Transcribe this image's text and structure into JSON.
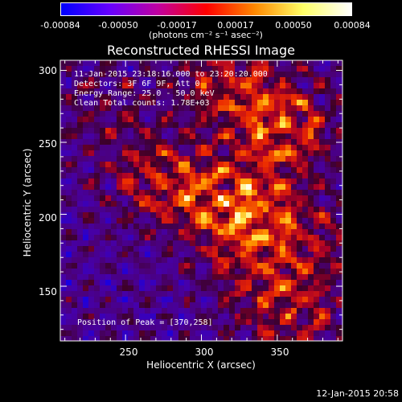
{
  "colorbar": {
    "ticks": [
      "-0.00084",
      "-0.00050",
      "-0.00017",
      "0.00017",
      "0.00050",
      "0.00084"
    ],
    "unit": "(photons cm⁻² s⁻¹ asec⁻²)",
    "colors": [
      "#0000ff",
      "#6600ff",
      "#c000a0",
      "#ff0000",
      "#ff8800",
      "#ffff66",
      "#ffffff"
    ]
  },
  "chart_data": {
    "type": "heatmap",
    "title": "Reconstructed RHESSI Image",
    "xlabel": "Heliocentric X (arcsec)",
    "ylabel": "Heliocentric Y (arcsec)",
    "xlim": [
      207,
      393
    ],
    "ylim": [
      112,
      307
    ],
    "x_ticks": [
      "250",
      "300",
      "350"
    ],
    "y_ticks": [
      "150",
      "200",
      "250",
      "300"
    ],
    "info_lines": [
      "11-Jan-2015 23:18:16.000 to 23:20:20.000",
      "Detectors: 3F 6F 9F, Att 0",
      "Energy Range: 25.0 - 50.0 keV",
      "Clean     Total counts: 1.78E+03"
    ],
    "peak_label": "Position of Peak = [370,258]",
    "peak": [
      370,
      258
    ],
    "bright_blobs": [
      {
        "x": 318,
        "y": 292,
        "strength": 0.8
      },
      {
        "x": 355,
        "y": 260,
        "strength": 1.0
      },
      {
        "x": 270,
        "y": 225,
        "strength": 0.75
      },
      {
        "x": 312,
        "y": 210,
        "strength": 0.8
      },
      {
        "x": 340,
        "y": 200,
        "strength": 0.6
      },
      {
        "x": 360,
        "y": 130,
        "strength": 0.7
      },
      {
        "x": 330,
        "y": 165,
        "strength": 0.45
      },
      {
        "x": 235,
        "y": 275,
        "strength": 0.35
      },
      {
        "x": 375,
        "y": 180,
        "strength": 0.5
      }
    ]
  },
  "date_stamp": "12-Jan-2015 20:58"
}
